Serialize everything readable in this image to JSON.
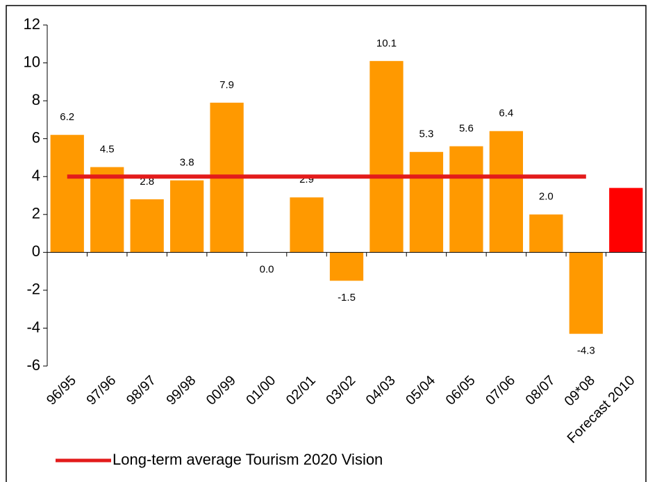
{
  "chart_data": {
    "type": "bar",
    "categories": [
      "96/95",
      "97/96",
      "98/97",
      "99/98",
      "00/99",
      "01/00",
      "02/01",
      "03/02",
      "04/03",
      "05/04",
      "06/05",
      "07/06",
      "08/07",
      "09*08",
      "Forecast 2010"
    ],
    "values": [
      6.2,
      4.5,
      2.8,
      3.8,
      7.9,
      0.0,
      2.9,
      -1.5,
      10.1,
      5.3,
      5.6,
      6.4,
      2.0,
      -4.3,
      3.4
    ],
    "value_labels": [
      "6.2",
      "4.5",
      "2.8",
      "3.8",
      "7.9",
      "0.0",
      "2.9",
      "-1.5",
      "10.1",
      "5.3",
      "5.6",
      "6.4",
      "2.0",
      "-4.3",
      null
    ],
    "colors": [
      "#ff9900",
      "#ff9900",
      "#ff9900",
      "#ff9900",
      "#ff9900",
      "#ff9900",
      "#ff9900",
      "#ff9900",
      "#ff9900",
      "#ff9900",
      "#ff9900",
      "#ff9900",
      "#ff9900",
      "#ff9900",
      "#ff0000"
    ],
    "series": [
      {
        "name": "Long-term average Tourism 2020 Vision",
        "color": "#e31b1b",
        "type": "line",
        "values": [
          4,
          4,
          4,
          4,
          4,
          4,
          4,
          4,
          4,
          4,
          4,
          4,
          4,
          4,
          null
        ]
      }
    ],
    "ylim": [
      -6,
      12
    ],
    "yticks": [
      -6,
      -4,
      -2,
      0,
      2,
      4,
      6,
      8,
      10,
      12
    ],
    "grid": false
  }
}
